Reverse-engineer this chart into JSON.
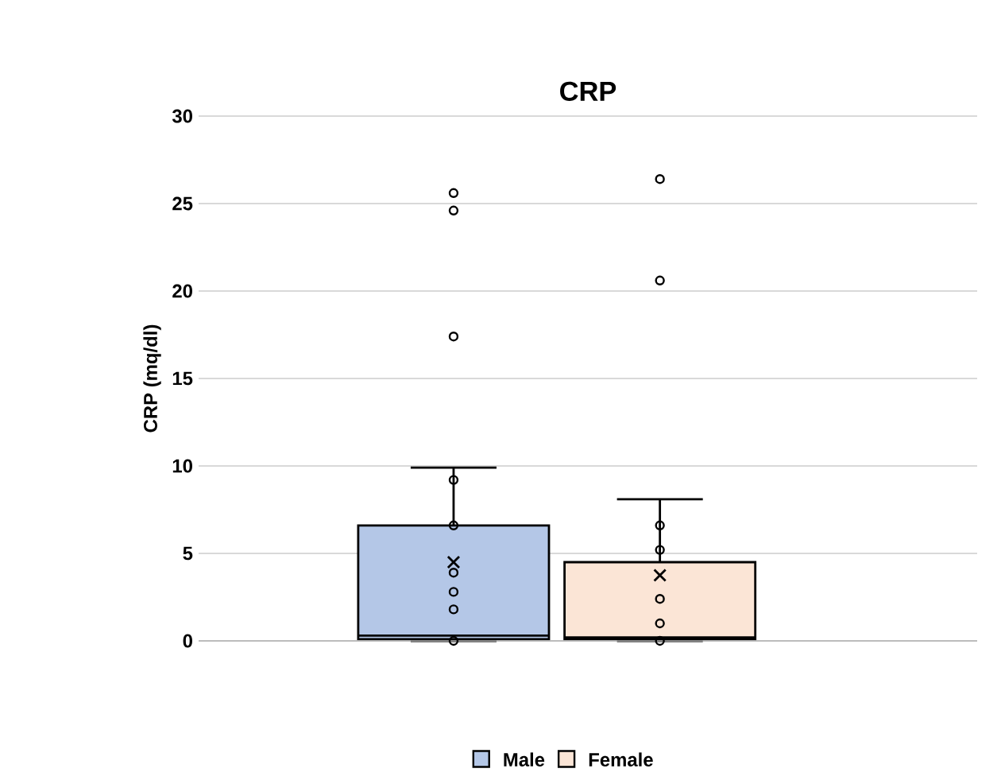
{
  "chart_data": {
    "type": "box",
    "title": "CRP",
    "ylabel": "CRP (mq/dl)",
    "categories": [
      null
    ],
    "series": [
      {
        "name": "Male",
        "color": "#b4c7e7",
        "boxes": [
          {
            "low": 0,
            "q1": 0.1,
            "median": 0.3,
            "q3": 6.6,
            "high": 9.9,
            "mean": 4.5,
            "outliers": [
              25.6,
              24.6,
              17.4,
              9.2,
              6.6,
              3.9,
              2.8,
              1.8,
              0
            ]
          }
        ]
      },
      {
        "name": "Female",
        "color": "#fbe5d6",
        "boxes": [
          {
            "low": 0,
            "q1": 0.1,
            "median": 0.2,
            "q3": 4.5,
            "high": 8.1,
            "mean": 3.75,
            "outliers": [
              26.4,
              20.6,
              6.6,
              5.2,
              2.4,
              1.0,
              0
            ]
          }
        ]
      }
    ],
    "ylim": [
      0,
      30
    ],
    "yticks": [
      0,
      5,
      10,
      15,
      20,
      25,
      30
    ],
    "grid": "y",
    "legend": "bottom",
    "marker": "circle"
  }
}
